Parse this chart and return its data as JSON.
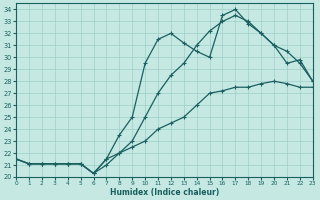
{
  "title": "",
  "xlabel": "Humidex (Indice chaleur)",
  "ylabel": "",
  "background_color": "#c5e8e2",
  "grid_color": "#9ecfc7",
  "line_color": "#1a6060",
  "xlim": [
    0,
    23
  ],
  "ylim": [
    20,
    34.5
  ],
  "xticks": [
    0,
    1,
    2,
    3,
    4,
    5,
    6,
    7,
    8,
    9,
    10,
    11,
    12,
    13,
    14,
    15,
    16,
    17,
    18,
    19,
    20,
    21,
    22,
    23
  ],
  "yticks": [
    20,
    21,
    22,
    23,
    24,
    25,
    26,
    27,
    28,
    29,
    30,
    31,
    32,
    33,
    34
  ],
  "line1_x": [
    0,
    1,
    2,
    3,
    4,
    5,
    6,
    7,
    8,
    9,
    10,
    11,
    12,
    13,
    14,
    15,
    16,
    17,
    18,
    19,
    20,
    21,
    22,
    23
  ],
  "line1_y": [
    21.5,
    21.1,
    21.1,
    21.1,
    21.1,
    21.1,
    20.3,
    21.0,
    22.0,
    22.5,
    23.0,
    24.0,
    24.5,
    25.0,
    26.0,
    27.0,
    27.2,
    27.5,
    27.5,
    27.8,
    28.0,
    27.8,
    27.5,
    27.5
  ],
  "line2_x": [
    0,
    1,
    2,
    3,
    4,
    5,
    6,
    7,
    8,
    9,
    10,
    11,
    12,
    13,
    14,
    15,
    16,
    17,
    18,
    19,
    20,
    21,
    22,
    23
  ],
  "line2_y": [
    21.5,
    21.1,
    21.1,
    21.1,
    21.1,
    21.1,
    20.3,
    21.5,
    23.5,
    25.0,
    29.5,
    31.5,
    32.0,
    31.2,
    30.5,
    30.0,
    33.5,
    34.0,
    32.8,
    32.0,
    31.0,
    29.5,
    29.8,
    28.0
  ],
  "line3_x": [
    0,
    1,
    2,
    3,
    4,
    5,
    6,
    7,
    8,
    9,
    10,
    11,
    12,
    13,
    14,
    15,
    16,
    17,
    18,
    19,
    20,
    21,
    22,
    23
  ],
  "line3_y": [
    21.5,
    21.1,
    21.1,
    21.1,
    21.1,
    21.1,
    20.3,
    21.5,
    22.0,
    23.0,
    25.0,
    27.0,
    28.5,
    29.5,
    31.0,
    32.2,
    33.0,
    33.5,
    33.0,
    32.0,
    31.0,
    30.5,
    29.5,
    28.0
  ]
}
